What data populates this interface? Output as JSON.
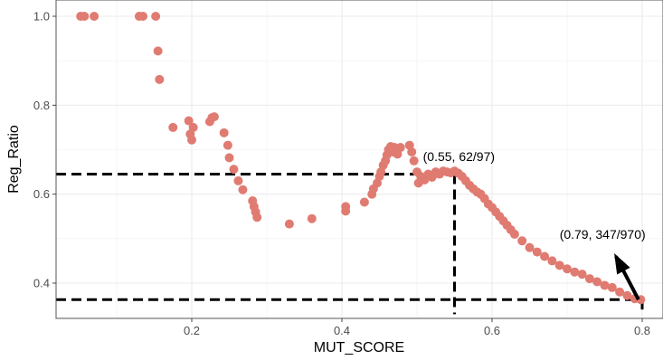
{
  "chart_data": {
    "type": "scatter",
    "xlabel": "MUT_SCORE",
    "ylabel": "Reg_Ratio",
    "xlim": [
      0.0,
      0.8
    ],
    "ylim": [
      0.33,
      1.03
    ],
    "x_ticks": [
      0.2,
      0.4,
      0.6,
      0.8
    ],
    "x_tick_labels": [
      "0.2",
      "0.4",
      "0.6",
      "0.8"
    ],
    "y_ticks": [
      0.4,
      0.6,
      0.8,
      1.0
    ],
    "y_tick_labels": [
      "0.4",
      "0.6",
      "0.8",
      "1.0"
    ],
    "grid": true,
    "point_color": "#e07b72",
    "reference_lines": [
      {
        "orientation": "horizontal",
        "y": 0.645,
        "x_from": 0.0,
        "x_to": 0.55
      },
      {
        "orientation": "vertical",
        "x": 0.55,
        "y_from": 0.33,
        "y_to": 0.645
      },
      {
        "orientation": "horizontal",
        "y": 0.363,
        "x_from": 0.0,
        "x_to": 0.8
      },
      {
        "orientation": "vertical",
        "x": 0.8,
        "y_from": 0.33,
        "y_to": 0.363
      }
    ],
    "annotations": [
      {
        "text": "(0.55, 62/97)",
        "x": 0.508,
        "y": 0.675
      },
      {
        "text": "(0.79, 347/970)",
        "x": 0.69,
        "y": 0.5,
        "arrow_to": [
          0.795,
          0.363
        ],
        "arrow_from": [
          0.765,
          0.46
        ]
      }
    ],
    "x": [
      0.052,
      0.057,
      0.07,
      0.13,
      0.135,
      0.152,
      0.155,
      0.157,
      0.175,
      0.196,
      0.198,
      0.2,
      0.202,
      0.224,
      0.227,
      0.23,
      0.243,
      0.248,
      0.25,
      0.256,
      0.262,
      0.268,
      0.281,
      0.283,
      0.285,
      0.287,
      0.33,
      0.36,
      0.405,
      0.405,
      0.43,
      0.44,
      0.442,
      0.447,
      0.45,
      0.452,
      0.455,
      0.458,
      0.46,
      0.462,
      0.465,
      0.468,
      0.47,
      0.474,
      0.478,
      0.49,
      0.493,
      0.496,
      0.5,
      0.502,
      0.505,
      0.51,
      0.515,
      0.52,
      0.525,
      0.53,
      0.535,
      0.54,
      0.545,
      0.55,
      0.555,
      0.56,
      0.565,
      0.57,
      0.575,
      0.58,
      0.585,
      0.59,
      0.595,
      0.6,
      0.605,
      0.61,
      0.615,
      0.62,
      0.625,
      0.63,
      0.64,
      0.65,
      0.66,
      0.67,
      0.68,
      0.69,
      0.7,
      0.71,
      0.72,
      0.73,
      0.74,
      0.75,
      0.76,
      0.77,
      0.78,
      0.79,
      0.798
    ],
    "y": [
      1.0,
      1.0,
      1.0,
      1.0,
      1.0,
      1.0,
      0.922,
      0.858,
      0.75,
      0.765,
      0.735,
      0.722,
      0.75,
      0.763,
      0.772,
      0.774,
      0.738,
      0.71,
      0.682,
      0.656,
      0.63,
      0.61,
      0.585,
      0.572,
      0.56,
      0.548,
      0.533,
      0.545,
      0.572,
      0.562,
      0.582,
      0.6,
      0.612,
      0.625,
      0.64,
      0.65,
      0.665,
      0.675,
      0.688,
      0.7,
      0.707,
      0.695,
      0.705,
      0.69,
      0.705,
      0.71,
      0.695,
      0.675,
      0.65,
      0.625,
      0.64,
      0.632,
      0.645,
      0.638,
      0.65,
      0.645,
      0.652,
      0.65,
      0.648,
      0.652,
      0.647,
      0.64,
      0.63,
      0.62,
      0.612,
      0.605,
      0.6,
      0.59,
      0.578,
      0.57,
      0.56,
      0.55,
      0.54,
      0.53,
      0.52,
      0.51,
      0.495,
      0.48,
      0.47,
      0.46,
      0.45,
      0.44,
      0.432,
      0.425,
      0.42,
      0.41,
      0.403,
      0.395,
      0.39,
      0.38,
      0.372,
      0.365,
      0.363
    ]
  }
}
